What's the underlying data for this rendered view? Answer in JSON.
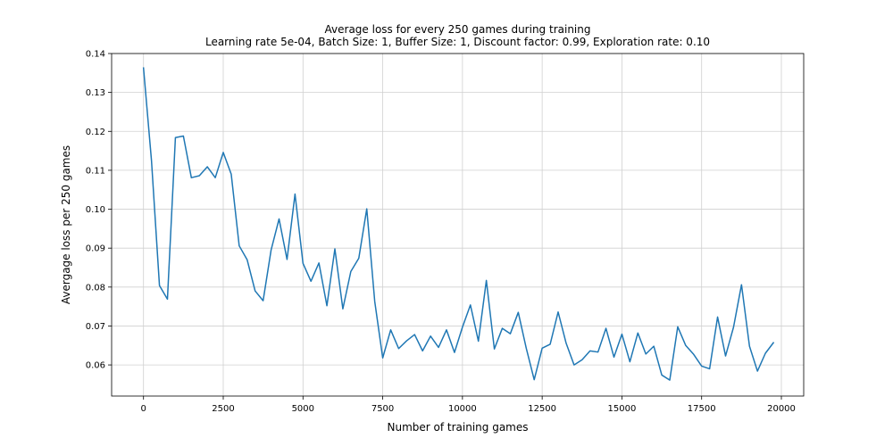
{
  "chart_data": {
    "type": "line",
    "title": "Average loss for every 250 games during training",
    "subtitle": "Learning rate 5e-04, Batch Size: 1, Buffer Size: 1, Discount factor: 0.99, Exploration rate: 0.10",
    "xlabel": "Number of training games",
    "ylabel": "Avergage loss per 250 games",
    "xlim": [
      -1000,
      20700
    ],
    "ylim": [
      0.052,
      0.14
    ],
    "xticks": [
      0,
      2500,
      5000,
      7500,
      10000,
      12500,
      15000,
      17500,
      20000
    ],
    "xtick_labels": [
      "0",
      "2500",
      "5000",
      "7500",
      "10000",
      "12500",
      "15000",
      "17500",
      "20000"
    ],
    "yticks": [
      0.06,
      0.07,
      0.08,
      0.09,
      0.1,
      0.11,
      0.12,
      0.13,
      0.14
    ],
    "ytick_labels": [
      "0.06",
      "0.07",
      "0.08",
      "0.09",
      "0.10",
      "0.11",
      "0.12",
      "0.13",
      "0.14"
    ],
    "grid": true,
    "color": "#1f77b4",
    "x": [
      0,
      250,
      500,
      750,
      1000,
      1250,
      1500,
      1750,
      2000,
      2250,
      2500,
      2750,
      3000,
      3250,
      3500,
      3750,
      4000,
      4250,
      4500,
      4750,
      5000,
      5250,
      5500,
      5750,
      6000,
      6250,
      6500,
      6750,
      7000,
      7250,
      7500,
      7750,
      8000,
      8250,
      8500,
      8750,
      9000,
      9250,
      9500,
      9750,
      10000,
      10250,
      10500,
      10750,
      11000,
      11250,
      11500,
      11750,
      12000,
      12250,
      12500,
      12750,
      13000,
      13250,
      13500,
      13750,
      14000,
      14250,
      14500,
      14750,
      15000,
      15250,
      15500,
      15750,
      16000,
      16250,
      16500,
      16750,
      17000,
      17250,
      17500,
      17750,
      18000,
      18250,
      18500,
      18750,
      19000,
      19250,
      19500,
      19750
    ],
    "y": [
      0.1363,
      0.1125,
      0.0804,
      0.0769,
      0.1184,
      0.1188,
      0.1081,
      0.1086,
      0.1109,
      0.1081,
      0.1146,
      0.109,
      0.0906,
      0.087,
      0.079,
      0.0765,
      0.0895,
      0.0975,
      0.0871,
      0.1039,
      0.0861,
      0.0815,
      0.0862,
      0.0752,
      0.0898,
      0.0744,
      0.084,
      0.0874,
      0.1001,
      0.0763,
      0.0618,
      0.069,
      0.0642,
      0.0662,
      0.0678,
      0.0636,
      0.0674,
      0.0645,
      0.069,
      0.0632,
      0.0697,
      0.0754,
      0.0661,
      0.0817,
      0.0641,
      0.0694,
      0.068,
      0.0735,
      0.0643,
      0.0562,
      0.0643,
      0.0653,
      0.0736,
      0.0656,
      0.06,
      0.0613,
      0.0636,
      0.0633,
      0.0694,
      0.062,
      0.0679,
      0.0608,
      0.0682,
      0.0628,
      0.0648,
      0.0574,
      0.0561,
      0.0698,
      0.065,
      0.0627,
      0.0597,
      0.059,
      0.0723,
      0.0623,
      0.0697,
      0.0806,
      0.0648,
      0.0584,
      0.063,
      0.0657
    ]
  }
}
